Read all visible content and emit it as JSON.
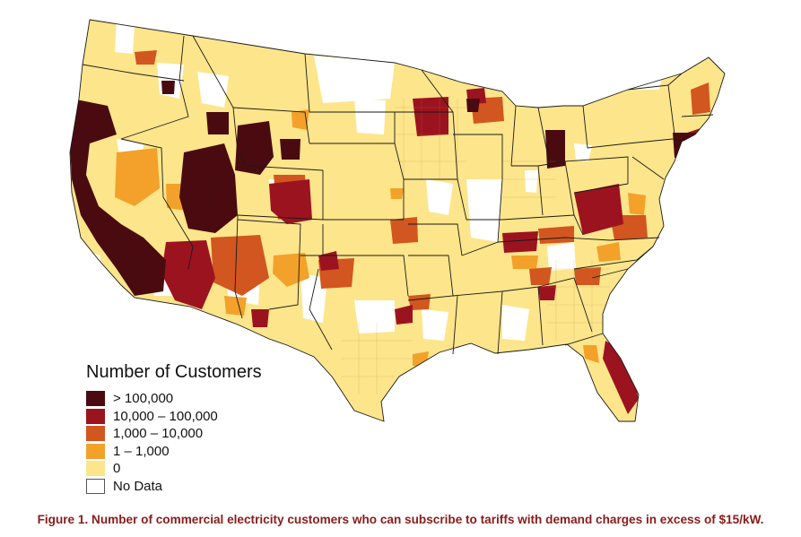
{
  "legend": {
    "title": "Number of Customers",
    "items": [
      {
        "label": "> 100,000",
        "color": "#4a0b10"
      },
      {
        "label": "10,000 – 100,000",
        "color": "#9c1320"
      },
      {
        "label": "1,000 – 10,000",
        "color": "#d2561f"
      },
      {
        "label": "1 – 1,000",
        "color": "#f3a12a"
      },
      {
        "label": "0",
        "color": "#fde58b"
      },
      {
        "label": "No Data",
        "color": "#ffffff"
      }
    ]
  },
  "caption": "Figure 1. Number of commercial electricity customers who can subscribe to tariffs with demand charges in excess of $15/kW.",
  "colors": {
    "boundary": "#1a1a1a",
    "caption": "#8a1b1b"
  }
}
